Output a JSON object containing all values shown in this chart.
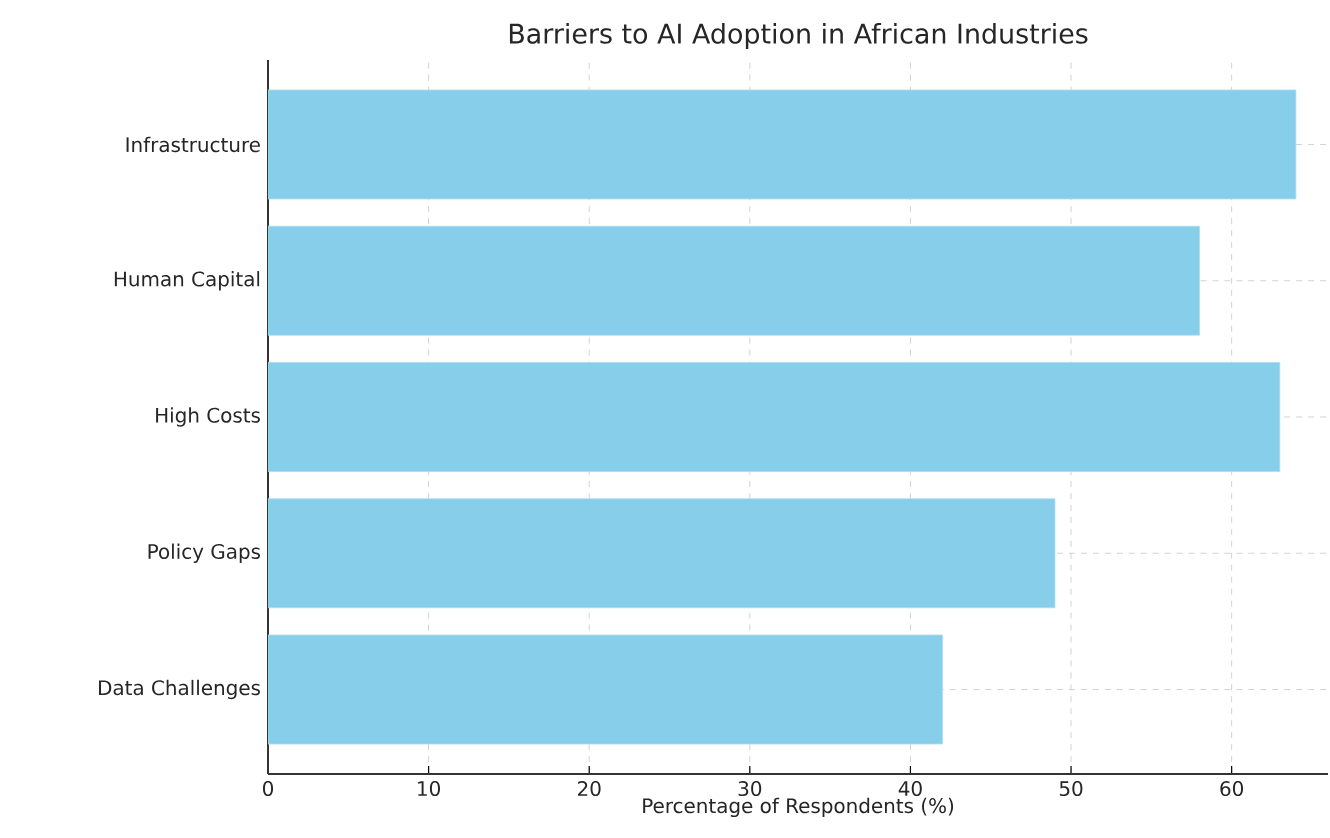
{
  "chart_data": {
    "type": "bar",
    "orientation": "horizontal",
    "title": "Barriers to AI Adoption in African Industries",
    "xlabel": "Percentage of Respondents (%)",
    "categories": [
      "Infrastructure",
      "Human Capital",
      "High Costs",
      "Policy Gaps",
      "Data Challenges"
    ],
    "values": [
      64,
      58,
      63,
      49,
      42
    ],
    "color": "#87ceeb",
    "xlim": [
      0,
      66
    ],
    "xticks": [
      0,
      10,
      20,
      30,
      40,
      50,
      60
    ],
    "grid": true
  }
}
